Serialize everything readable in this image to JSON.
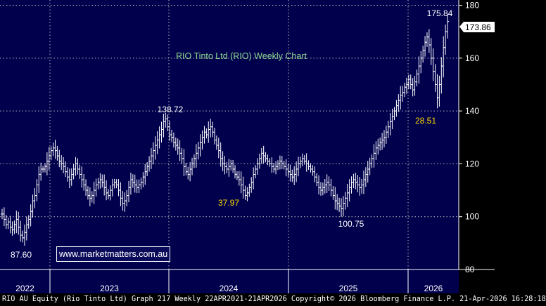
{
  "footer_text": "RIO AU Equity (Rio Tinto Ltd) Graph 217 Weekly 22APR2021-21APR2026 Copyright© 2026 Bloomberg Finance L.P. 21-Apr-2026 16:28:18",
  "watermark_text": "www.marketmatters.com.au",
  "colors": {
    "plot_background": "#00004d",
    "bars": "#ffffff",
    "grid": "#bbbbbb",
    "title": "#8fd98f",
    "annotation_yellow": "#ffd700",
    "annotation_white": "#ffffff"
  },
  "chart_data": {
    "type": "ohlc",
    "title": "RIO Tinto Ltd (RIO) Weekly Chart",
    "ylim": [
      80,
      182
    ],
    "yticks": [
      80,
      100,
      120,
      140,
      160,
      180
    ],
    "x_tick_labels": [
      "2022",
      "2023",
      "2024",
      "2025",
      "2026"
    ],
    "last_price": 173.86,
    "annotations": [
      {
        "text": "175.84",
        "value": 175.84,
        "color": "white"
      },
      {
        "text": "138.72",
        "value": 138.72,
        "color": "white"
      },
      {
        "text": "37.97",
        "color": "yellow"
      },
      {
        "text": "100.75",
        "value": 100.75,
        "color": "white"
      },
      {
        "text": "87.60",
        "value": 87.6,
        "color": "white"
      },
      {
        "text": "28.51",
        "color": "yellow"
      }
    ],
    "weekly_closes": [
      101,
      99,
      97,
      98,
      96,
      95,
      97,
      99,
      96,
      93,
      92,
      94,
      97,
      99,
      102,
      106,
      108,
      112,
      116,
      118,
      118,
      119,
      121,
      123,
      125,
      126,
      125,
      123,
      121,
      120,
      119,
      117,
      115,
      114,
      116,
      118,
      120,
      118,
      116,
      114,
      112,
      110,
      108,
      107,
      108,
      110,
      112,
      113,
      114,
      113,
      111,
      109,
      108,
      110,
      112,
      113,
      112,
      110,
      107,
      105,
      106,
      108,
      111,
      114,
      113,
      112,
      111,
      112,
      113,
      115,
      117,
      119,
      121,
      123,
      125,
      127,
      129,
      131,
      133,
      136,
      137,
      134,
      131,
      130,
      128,
      127,
      126,
      124,
      122,
      119,
      117,
      116,
      118,
      120,
      122,
      124,
      126,
      128,
      130,
      132,
      131,
      133,
      134,
      132,
      129,
      127,
      125,
      122,
      120,
      119,
      118,
      119,
      120,
      118,
      116,
      115,
      114,
      112,
      110,
      108,
      109,
      111,
      113,
      116,
      118,
      120,
      122,
      124,
      123,
      122,
      121,
      120,
      119,
      118,
      119,
      120,
      121,
      120,
      119,
      118,
      117,
      116,
      115,
      116,
      118,
      120,
      121,
      122,
      121,
      120,
      119,
      118,
      117,
      115,
      113,
      111,
      110,
      111,
      112,
      113,
      112,
      110,
      108,
      106,
      105,
      104,
      103,
      105,
      107,
      109,
      111,
      113,
      114,
      113,
      112,
      111,
      112,
      114,
      116,
      118,
      120,
      122,
      124,
      126,
      127,
      128,
      129,
      130,
      132,
      134,
      136,
      138,
      140,
      142,
      144,
      146,
      147,
      149,
      150,
      152,
      150,
      148,
      151,
      154,
      157,
      160,
      163,
      166,
      168,
      165,
      160,
      155,
      150,
      145,
      150,
      157,
      164,
      170,
      173.86
    ]
  }
}
